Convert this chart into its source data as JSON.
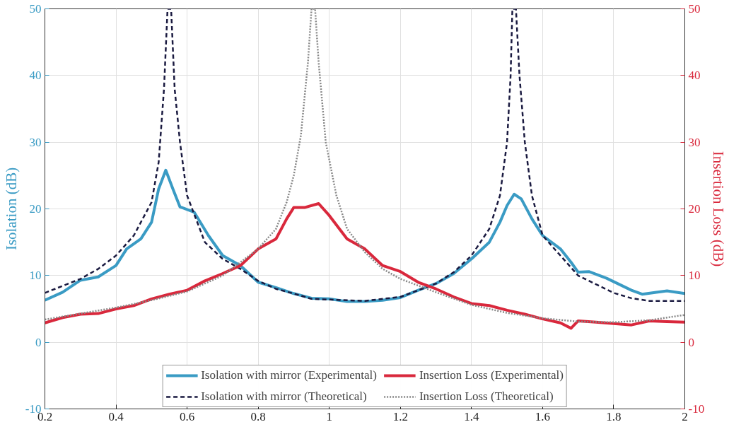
{
  "chart_data": {
    "type": "line",
    "ylabel": "Isolation (dB)",
    "y2label": "Insertion Loss (dB)",
    "xlim": [
      0.2,
      2
    ],
    "xticks": [
      0.2,
      0.4,
      0.6,
      0.8,
      1,
      1.2,
      1.4,
      1.6,
      1.8,
      2
    ],
    "ylim": [
      -10,
      50
    ],
    "yticks": [
      -10,
      0,
      10,
      20,
      30,
      40,
      50
    ],
    "y2lim": [
      -10,
      50
    ],
    "y2ticks": [
      -10,
      0,
      10,
      20,
      30,
      40,
      50
    ],
    "grid": true,
    "legend": "bottom",
    "series": [
      {
        "name": "Isolation with mirror (Experimental)",
        "color": "#3a9bc4",
        "line_style": "solid",
        "x": [
          0.2,
          0.25,
          0.3,
          0.35,
          0.4,
          0.43,
          0.47,
          0.5,
          0.52,
          0.54,
          0.56,
          0.58,
          0.62,
          0.66,
          0.7,
          0.75,
          0.8,
          0.85,
          0.9,
          0.95,
          1.0,
          1.05,
          1.1,
          1.15,
          1.2,
          1.25,
          1.3,
          1.35,
          1.4,
          1.45,
          1.48,
          1.5,
          1.52,
          1.54,
          1.57,
          1.6,
          1.65,
          1.68,
          1.7,
          1.73,
          1.78,
          1.85,
          1.88,
          1.92,
          1.95,
          2.0
        ],
        "values": [
          6.3,
          7.5,
          9.3,
          9.8,
          11.5,
          14,
          15.5,
          18,
          23,
          25.8,
          23,
          20.3,
          19.5,
          16,
          13,
          11.5,
          9,
          8.2,
          7.3,
          6.6,
          6.5,
          6.1,
          6.1,
          6.3,
          6.7,
          7.8,
          8.8,
          10.3,
          12.5,
          15,
          18,
          20.5,
          22.2,
          21.5,
          18.5,
          16,
          14,
          12,
          10.5,
          10.6,
          9.6,
          7.8,
          7.2,
          7.5,
          7.7,
          7.3
        ]
      },
      {
        "name": "Isolation with mirror (Theoretical)",
        "color": "#1a1a40",
        "line_style": "dashed",
        "x": [
          0.2,
          0.3,
          0.35,
          0.4,
          0.45,
          0.5,
          0.52,
          0.535,
          0.545,
          0.555,
          0.565,
          0.58,
          0.6,
          0.65,
          0.7,
          0.75,
          0.8,
          0.85,
          0.9,
          0.95,
          1.0,
          1.1,
          1.2,
          1.3,
          1.35,
          1.4,
          1.45,
          1.48,
          1.5,
          1.51,
          1.515,
          1.525,
          1.535,
          1.55,
          1.57,
          1.6,
          1.65,
          1.7,
          1.75,
          1.8,
          1.85,
          1.9,
          2.0
        ],
        "values": [
          7.4,
          9.5,
          11,
          13,
          16,
          21,
          27,
          38,
          50,
          50,
          38,
          30,
          22,
          15,
          12.5,
          11,
          9.2,
          8,
          7.3,
          6.5,
          6.4,
          6.2,
          6.8,
          8.8,
          10.5,
          13,
          17,
          22,
          30,
          40,
          50,
          50,
          40,
          30,
          22,
          16,
          13,
          10,
          8.7,
          7.4,
          6.6,
          6.2,
          6.2
        ]
      },
      {
        "name": "Insertion Loss (Experimental)",
        "color": "#d9283c",
        "line_style": "solid",
        "axis": "y2",
        "x": [
          0.2,
          0.25,
          0.3,
          0.35,
          0.4,
          0.45,
          0.5,
          0.55,
          0.6,
          0.65,
          0.7,
          0.75,
          0.8,
          0.85,
          0.88,
          0.9,
          0.93,
          0.97,
          1.0,
          1.05,
          1.1,
          1.15,
          1.2,
          1.25,
          1.3,
          1.35,
          1.4,
          1.45,
          1.5,
          1.55,
          1.6,
          1.65,
          1.68,
          1.7,
          1.75,
          1.8,
          1.85,
          1.9,
          1.95,
          2.0
        ],
        "values": [
          2.9,
          3.7,
          4.2,
          4.3,
          5,
          5.5,
          6.5,
          7.2,
          7.8,
          9.2,
          10.3,
          11.5,
          14,
          15.5,
          18.5,
          20.2,
          20.2,
          20.8,
          19,
          15.5,
          14,
          11.5,
          10.6,
          9,
          8,
          6.8,
          5.8,
          5.5,
          4.8,
          4.2,
          3.5,
          2.9,
          2.1,
          3.2,
          3.0,
          2.8,
          2.6,
          3.2,
          3.1,
          3.0
        ]
      },
      {
        "name": "Insertion Loss (Theoretical)",
        "color": "#888888",
        "line_style": "dotted",
        "axis": "y2",
        "x": [
          0.2,
          0.3,
          0.4,
          0.5,
          0.6,
          0.7,
          0.8,
          0.85,
          0.88,
          0.9,
          0.92,
          0.94,
          0.95,
          0.96,
          0.97,
          0.99,
          1.02,
          1.05,
          1.1,
          1.15,
          1.2,
          1.3,
          1.4,
          1.5,
          1.6,
          1.7,
          1.8,
          1.9,
          2.0
        ],
        "values": [
          3.4,
          4.3,
          5.2,
          6.3,
          7.6,
          10,
          14,
          17,
          21,
          25,
          31,
          42,
          50,
          50,
          42,
          30,
          22,
          17,
          13.5,
          11,
          9.5,
          7.5,
          5.6,
          4.4,
          3.6,
          3.1,
          3.0,
          3.3,
          4.1
        ]
      }
    ]
  }
}
